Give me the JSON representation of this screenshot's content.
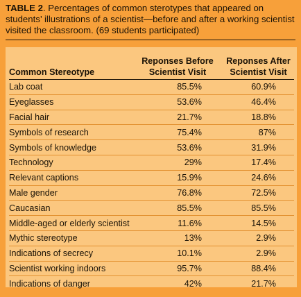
{
  "caption": {
    "label": "TABLE 2",
    "text": ". Percentages of common sterotypes that appeared on students’ illustrations of a scientist—before and after a working scientist visited the classroom.  (69 students participated)"
  },
  "table": {
    "headers": {
      "stereotype": "Common Stereotype",
      "before_line1": "Reponses Before",
      "before_line2": "Scientist Visit",
      "after_line1": "Reponses After",
      "after_line2": "Scientist Visit"
    },
    "rows": [
      {
        "stereotype": "Lab coat",
        "before": "85.5%",
        "after": "60.9%"
      },
      {
        "stereotype": "Eyeglasses",
        "before": "53.6%",
        "after": "46.4%"
      },
      {
        "stereotype": "Facial hair",
        "before": "21.7%",
        "after": "18.8%"
      },
      {
        "stereotype": "Symbols of research",
        "before": "75.4%",
        "after": "87%"
      },
      {
        "stereotype": "Symbols of knowledge",
        "before": "53.6%",
        "after": "31.9%"
      },
      {
        "stereotype": "Technology",
        "before": "29%",
        "after": "17.4%"
      },
      {
        "stereotype": "Relevant captions",
        "before": "15.9%",
        "after": "24.6%"
      },
      {
        "stereotype": "Male gender",
        "before": "76.8%",
        "after": "72.5%"
      },
      {
        "stereotype": "Caucasian",
        "before": "85.5%",
        "after": "85.5%"
      },
      {
        "stereotype": "Middle-aged or elderly scientist",
        "before": "11.6%",
        "after": "14.5%"
      },
      {
        "stereotype": "Mythic stereotype",
        "before": "13%",
        "after": "2.9%"
      },
      {
        "stereotype": "Indications of secrecy",
        "before": "10.1%",
        "after": "2.9%"
      },
      {
        "stereotype": "Scientist working indoors",
        "before": "95.7%",
        "after": "88.4%"
      },
      {
        "stereotype": "Indications of danger",
        "before": "42%",
        "after": "21.7%"
      }
    ]
  },
  "colors": {
    "background": "#f7a03a",
    "panel": "#fbc77f",
    "row_divider": "#e2902f",
    "text": "#1a1206"
  }
}
